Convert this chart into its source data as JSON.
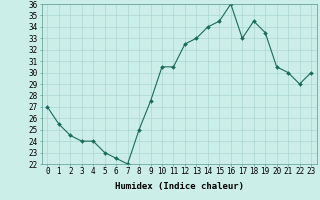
{
  "x": [
    0,
    1,
    2,
    3,
    4,
    5,
    6,
    7,
    8,
    9,
    10,
    11,
    12,
    13,
    14,
    15,
    16,
    17,
    18,
    19,
    20,
    21,
    22,
    23
  ],
  "y": [
    27,
    25.5,
    24.5,
    24,
    24,
    23,
    22.5,
    22,
    25,
    27.5,
    30.5,
    30.5,
    32.5,
    33,
    34,
    34.5,
    36,
    33,
    34.5,
    33.5,
    30.5,
    30,
    29,
    30
  ],
  "xlabel": "Humidex (Indice chaleur)",
  "ylim": [
    22,
    36
  ],
  "xlim": [
    -0.5,
    23.5
  ],
  "yticks": [
    22,
    23,
    24,
    25,
    26,
    27,
    28,
    29,
    30,
    31,
    32,
    33,
    34,
    35,
    36
  ],
  "xticks": [
    0,
    1,
    2,
    3,
    4,
    5,
    6,
    7,
    8,
    9,
    10,
    11,
    12,
    13,
    14,
    15,
    16,
    17,
    18,
    19,
    20,
    21,
    22,
    23
  ],
  "line_color": "#1a6b5a",
  "bg_color": "#cceee8",
  "grid_color": "#aad8d0",
  "tick_label_fontsize": 5.5,
  "xlabel_fontsize": 6.5
}
